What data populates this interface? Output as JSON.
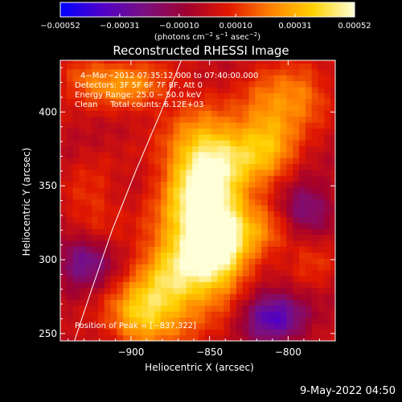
{
  "footer": {
    "date": "9-May-2022 04:50"
  },
  "chart_data": {
    "type": "heatmap",
    "title": "Reconstructed RHESSI Image",
    "xlabel": "Heliocentric X (arcsec)",
    "ylabel": "Heliocentric Y (arcsec)",
    "xlim": [
      -945,
      -770
    ],
    "ylim": [
      245,
      435
    ],
    "xticks": [
      -900,
      -850,
      -800
    ],
    "xtick_labels": [
      "−900",
      "−850",
      "−800"
    ],
    "yticks": [
      250,
      300,
      350,
      400
    ],
    "ytick_labels": [
      "250",
      "300",
      "350",
      "400"
    ],
    "colorbar": {
      "min": -0.00052,
      "max": 0.00052,
      "ticks": [
        -0.00052,
        -0.00031,
        -0.0001,
        0.0001,
        0.00031,
        0.00052
      ],
      "tick_labels": [
        "−0.00052",
        "−0.00031",
        "−0.00010",
        "0.00010",
        "0.00031",
        "0.00052"
      ],
      "unit_label_parts": [
        "(photons cm",
        "−2",
        " s",
        "−1",
        " asec",
        "−2",
        ")"
      ],
      "colormap": [
        "#0000ff",
        "#5000c8",
        "#7a1080",
        "#a00030",
        "#e01800",
        "#ff8000",
        "#ffd000",
        "#ffffd8"
      ]
    },
    "annotations": {
      "lines": [
        "4−Mar−2012 07:35:12.000 to 07:40:00.000",
        "Detectors: 3F 5F 6F 7F 8F, Att 0",
        "Energy Range: 25.0 − 50.0 keV",
        "Clean     Total counts: 6.12E+03"
      ],
      "peak_label": "Position of Peak = [−837,322]"
    },
    "peak": {
      "x": -837,
      "y": 322
    },
    "limb_curve": [
      [
        -936,
        245
      ],
      [
        -925,
        280
      ],
      [
        -912,
        320
      ],
      [
        -897,
        360
      ],
      [
        -881,
        400
      ],
      [
        -868,
        435
      ]
    ],
    "sources": [
      {
        "x": -858,
        "y": 345,
        "sx": 16,
        "sy": 34,
        "amp": 0.00043
      },
      {
        "x": -844,
        "y": 312,
        "sx": 14,
        "sy": 26,
        "amp": 0.00046
      },
      {
        "x": -875,
        "y": 285,
        "sx": 16,
        "sy": 24,
        "amp": 0.00033
      },
      {
        "x": -895,
        "y": 262,
        "sx": 14,
        "sy": 15,
        "amp": 0.0003
      },
      {
        "x": -838,
        "y": 372,
        "sx": 18,
        "sy": 16,
        "amp": 0.00026
      },
      {
        "x": -812,
        "y": 388,
        "sx": 13,
        "sy": 26,
        "amp": 0.00027
      },
      {
        "x": -790,
        "y": 410,
        "sx": 12,
        "sy": 14,
        "amp": 0.00019
      },
      {
        "x": -902,
        "y": 418,
        "sx": 18,
        "sy": 12,
        "amp": 0.00024
      },
      {
        "x": -930,
        "y": 425,
        "sx": 12,
        "sy": 10,
        "amp": 0.00014
      },
      {
        "x": -925,
        "y": 335,
        "sx": 12,
        "sy": 20,
        "amp": 0.00012
      },
      {
        "x": -815,
        "y": 320,
        "sx": 14,
        "sy": 14,
        "amp": 0.00016
      },
      {
        "x": -785,
        "y": 300,
        "sx": 10,
        "sy": 12,
        "amp": 0.0001
      },
      {
        "x": -930,
        "y": 300,
        "sx": 12,
        "sy": 12,
        "amp": -0.00028
      },
      {
        "x": -810,
        "y": 262,
        "sx": 14,
        "sy": 12,
        "amp": -0.00035
      },
      {
        "x": -790,
        "y": 335,
        "sx": 12,
        "sy": 12,
        "amp": -0.00025
      }
    ]
  }
}
